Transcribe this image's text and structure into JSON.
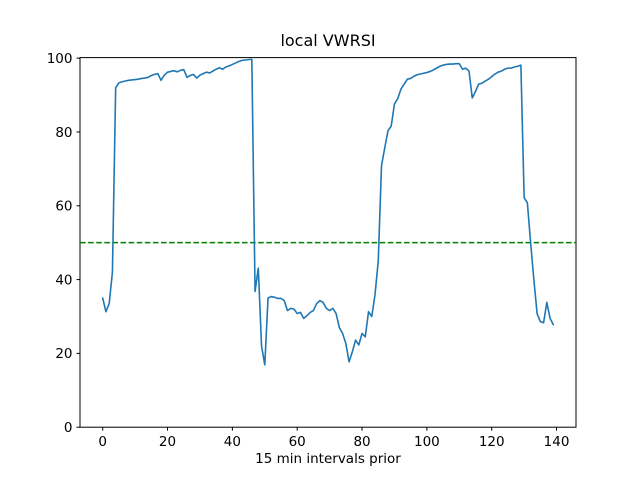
{
  "figure": {
    "background": "#ffffff",
    "axis_color": "#000000"
  },
  "chart_data": {
    "type": "line",
    "title": "local VWRSI",
    "xlabel": "15 min intervals prior",
    "ylabel": "",
    "xlim": [
      -7,
      146
    ],
    "ylim": [
      0,
      100.15
    ],
    "x_ticks": [
      0,
      20,
      40,
      60,
      80,
      100,
      120,
      140
    ],
    "y_ticks": [
      0,
      20,
      40,
      60,
      80,
      100
    ],
    "grid": false,
    "legend": false,
    "hline": {
      "y": 50,
      "color": "#008000",
      "style": "dashed"
    },
    "series": [
      {
        "name": "local VWRSI",
        "color": "#1f77b4",
        "x_start": 0,
        "x_step": 1,
        "values": [
          35.0,
          31.3,
          33.5,
          42.0,
          92.0,
          93.3,
          93.6,
          93.8,
          94.0,
          94.1,
          94.2,
          94.3,
          94.5,
          94.6,
          94.8,
          95.3,
          95.6,
          95.8,
          94.0,
          95.4,
          96.2,
          96.4,
          96.6,
          96.3,
          96.7,
          96.9,
          94.8,
          95.3,
          95.6,
          94.6,
          95.4,
          95.8,
          96.2,
          96.0,
          96.5,
          97.0,
          97.4,
          97.0,
          97.6,
          97.9,
          98.3,
          98.7,
          99.1,
          99.4,
          99.5,
          99.6,
          99.7,
          36.8,
          43.1,
          22.0,
          16.9,
          35.0,
          35.4,
          35.2,
          34.9,
          34.9,
          34.3,
          31.6,
          32.2,
          32.0,
          30.8,
          31.1,
          29.5,
          30.2,
          31.1,
          31.6,
          33.5,
          34.3,
          33.8,
          32.2,
          31.6,
          32.2,
          30.8,
          27.0,
          25.4,
          22.7,
          17.7,
          20.4,
          23.6,
          22.3,
          25.4,
          24.5,
          31.3,
          30.0,
          35.9,
          45.0,
          70.8,
          75.7,
          80.3,
          81.6,
          87.6,
          89.0,
          91.6,
          93.0,
          94.3,
          94.5,
          95.1,
          95.5,
          95.7,
          95.9,
          96.1,
          96.4,
          96.8,
          97.3,
          97.8,
          98.1,
          98.3,
          98.4,
          98.4,
          98.5,
          98.5,
          97.0,
          97.3,
          96.5,
          89.2,
          91.0,
          93.0,
          93.2,
          93.8,
          94.3,
          95.0,
          95.7,
          96.2,
          96.5,
          97.0,
          97.3,
          97.3,
          97.6,
          97.8,
          98.1,
          62.2,
          60.8,
          50.0,
          40.0,
          30.8,
          28.6,
          28.3,
          33.8,
          29.5,
          27.8
        ]
      }
    ]
  }
}
